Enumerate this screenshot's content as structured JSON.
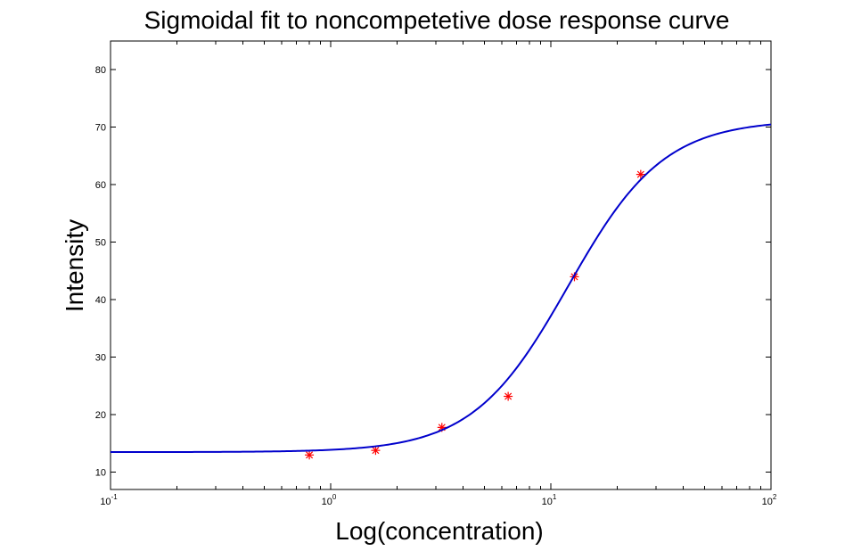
{
  "chart_data": {
    "type": "scatter",
    "title": "Sigmoidal fit to noncompetetive dose response curve",
    "xlabel": "Log(concentration)",
    "ylabel": "Intensity",
    "x_scale": "log",
    "xlim": [
      0.1,
      100
    ],
    "ylim": [
      7,
      85
    ],
    "x_ticks": [
      {
        "value": 0.1,
        "base": "10",
        "exp": "-1"
      },
      {
        "value": 1,
        "base": "10",
        "exp": "0"
      },
      {
        "value": 10,
        "base": "10",
        "exp": "1"
      },
      {
        "value": 100,
        "base": "10",
        "exp": "2"
      }
    ],
    "y_ticks": [
      10,
      20,
      30,
      40,
      50,
      60,
      70,
      80
    ],
    "grid": false,
    "series": [
      {
        "kind": "points",
        "marker": "asterisk",
        "color": "#ff0000",
        "x": [
          0.8,
          1.6,
          3.2,
          6.4,
          12.8,
          25.6
        ],
        "y": [
          13.0,
          13.8,
          17.8,
          23.2,
          44.0,
          61.8
        ]
      },
      {
        "kind": "fit",
        "color": "#0000cc",
        "model": "sigmoid",
        "params": {
          "bottom": 13.5,
          "top": 71.3,
          "ec50": 12.0,
          "hill": 2.0
        }
      }
    ]
  }
}
